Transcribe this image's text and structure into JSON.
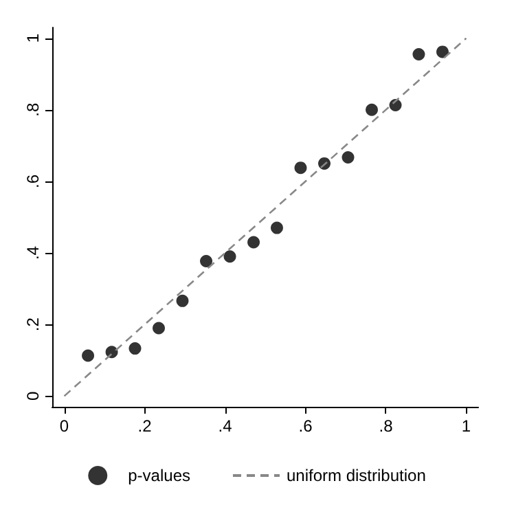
{
  "chart_data": {
    "type": "scatter",
    "xlim": [
      -0.03,
      1.03
    ],
    "ylim": [
      -0.03,
      1.03
    ],
    "xticks": [
      0,
      {
        "value": 0.2,
        "label": ".2"
      },
      {
        "value": 0.4,
        "label": ".4"
      },
      {
        "value": 0.6,
        "label": ".6"
      },
      {
        "value": 0.8,
        "label": ".8"
      },
      1
    ],
    "yticks": [
      0,
      {
        "value": 0.2,
        "label": ".2"
      },
      {
        "value": 0.4,
        "label": ".4"
      },
      {
        "value": 0.6,
        "label": ".6"
      },
      {
        "value": 0.8,
        "label": ".8"
      },
      1
    ],
    "grid": false,
    "legend": "bottom",
    "marker": "circle",
    "series": [
      {
        "name": "p-values",
        "color": "#000000",
        "x": [
          0.059,
          0.118,
          0.176,
          0.235,
          0.294,
          0.353,
          0.412,
          0.471,
          0.529,
          0.588,
          0.647,
          0.706,
          0.765,
          0.824,
          0.882,
          0.941
        ],
        "values": [
          0.113,
          0.123,
          0.133,
          0.19,
          0.266,
          0.377,
          0.39,
          0.43,
          0.47,
          0.638,
          0.65,
          0.667,
          0.8,
          0.813,
          0.955,
          0.962
        ]
      },
      {
        "name": "uniform distribution",
        "type": "line",
        "color": "#888888",
        "line_style": "dashed",
        "marker": "none",
        "x": [
          0,
          1
        ],
        "values": [
          0,
          1
        ]
      }
    ]
  }
}
